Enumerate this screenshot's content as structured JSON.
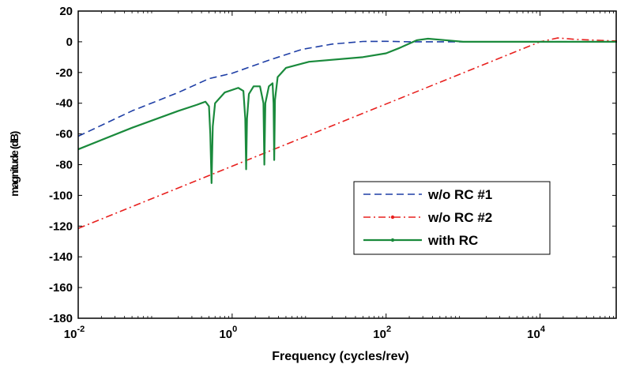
{
  "chart_data": {
    "type": "line",
    "xlabel": "Frequency (cycles/rev)",
    "ylabel": "magnitude (dB)",
    "x_scale": "log",
    "xlim": [
      0.01,
      100000
    ],
    "ylim": [
      -180,
      20
    ],
    "x_ticks": [
      {
        "value": 0.01,
        "base": "10",
        "exp": "-2"
      },
      {
        "value": 1,
        "base": "10",
        "exp": "0"
      },
      {
        "value": 100,
        "base": "10",
        "exp": "2"
      },
      {
        "value": 10000,
        "base": "10",
        "exp": "4"
      }
    ],
    "y_ticks": [
      "20",
      "0",
      "-20",
      "-40",
      "-60",
      "-80",
      "-100",
      "-120",
      "-140",
      "-160",
      "-180"
    ],
    "grid": false,
    "legend": {
      "position": "center-right"
    },
    "series": [
      {
        "name": "w/o RC #1",
        "color": "#1f3fa6",
        "style": "dashed",
        "points": [
          [
            0.01,
            -61.5
          ],
          [
            0.05,
            -45
          ],
          [
            0.2,
            -33
          ],
          [
            0.5,
            -24
          ],
          [
            1,
            -20.5
          ],
          [
            3,
            -12
          ],
          [
            8,
            -5
          ],
          [
            20,
            -1.5
          ],
          [
            50,
            0.2
          ],
          [
            100,
            0.3
          ],
          [
            200,
            0
          ],
          [
            1000,
            0
          ],
          [
            100000,
            0
          ]
        ]
      },
      {
        "name": "w/o RC #2",
        "color": "#e8201e",
        "style": "dashdot",
        "points": [
          [
            0.01,
            -121.5
          ],
          [
            10000,
            0
          ],
          [
            17000,
            2.5
          ],
          [
            30000,
            1.5
          ],
          [
            100000,
            0.5
          ]
        ]
      },
      {
        "name": "with RC",
        "color": "#1a8a3c",
        "style": "solid",
        "points": [
          [
            0.01,
            -70
          ],
          [
            0.05,
            -56
          ],
          [
            0.2,
            -45
          ],
          [
            0.35,
            -41
          ],
          [
            0.45,
            -39
          ],
          [
            0.5,
            -42
          ],
          [
            0.52,
            -60
          ],
          [
            0.54,
            -92
          ],
          [
            0.56,
            -55
          ],
          [
            0.6,
            -40
          ],
          [
            0.8,
            -33
          ],
          [
            1.2,
            -30
          ],
          [
            1.4,
            -32
          ],
          [
            1.48,
            -50
          ],
          [
            1.52,
            -83
          ],
          [
            1.56,
            -50
          ],
          [
            1.65,
            -34
          ],
          [
            1.9,
            -29
          ],
          [
            2.3,
            -29
          ],
          [
            2.55,
            -40
          ],
          [
            2.62,
            -80
          ],
          [
            2.7,
            -40
          ],
          [
            3.0,
            -29
          ],
          [
            3.35,
            -27
          ],
          [
            3.45,
            -40
          ],
          [
            3.52,
            -77
          ],
          [
            3.6,
            -38
          ],
          [
            3.9,
            -23
          ],
          [
            5,
            -17
          ],
          [
            10,
            -13
          ],
          [
            50,
            -10
          ],
          [
            100,
            -7.5
          ],
          [
            150,
            -4
          ],
          [
            250,
            1
          ],
          [
            350,
            2
          ],
          [
            600,
            1
          ],
          [
            1000,
            0
          ],
          [
            100000,
            0
          ]
        ]
      }
    ]
  }
}
